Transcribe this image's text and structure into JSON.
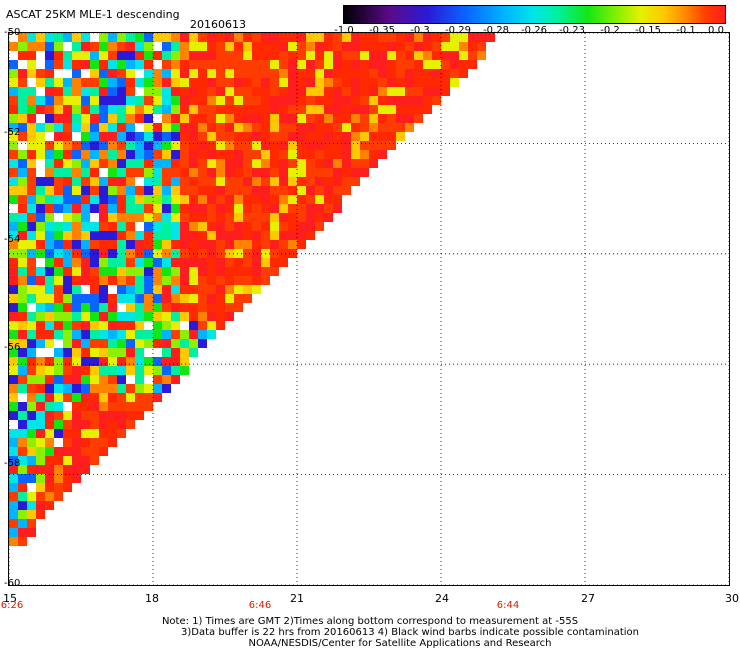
{
  "title": "ASCAT 25KM MLE-1 descending",
  "date": "20160613",
  "colorbar": {
    "labels": [
      "-1.0",
      "-0.35",
      "-0.3",
      "-0.29",
      "-0.28",
      "-0.26",
      "-0.23",
      "-0.2",
      "-0.15",
      "-0.1",
      "0.0"
    ]
  },
  "axes": {
    "y_ticks": [
      "-50",
      "-52",
      "-54",
      "-56",
      "-58",
      "-60"
    ],
    "x_ticks": [
      "15",
      "18",
      "21",
      "24",
      "27",
      "30"
    ],
    "times": [
      "6:26",
      "6:46",
      "6:44"
    ]
  },
  "notes": [
    "Note: 1) Times are GMT 2)Times along bottom correspond to measurement at -55S",
    "3)Data buffer is 22 hrs from 20160613 4) Black wind barbs indicate possible contamination",
    "NOAA/NESDIS/Center for Satellite Applications and Research"
  ],
  "chart_data": {
    "type": "heatmap",
    "title": "ASCAT 25KM MLE-1 descending",
    "xlim": [
      15,
      30
    ],
    "ylim": [
      -60,
      -50
    ],
    "x_ticks": [
      15,
      18,
      21,
      24,
      27,
      30
    ],
    "y_ticks": [
      -50,
      -52,
      -54,
      -56,
      -58,
      -60
    ],
    "color_scale_labels": [
      -1.0,
      -0.35,
      -0.3,
      -0.29,
      -0.28,
      -0.26,
      -0.23,
      -0.2,
      -0.15,
      -0.1,
      0.0
    ],
    "swath_edge": [
      [
        25.2,
        -50
      ],
      [
        15,
        -59.4
      ]
    ],
    "grid": true
  }
}
